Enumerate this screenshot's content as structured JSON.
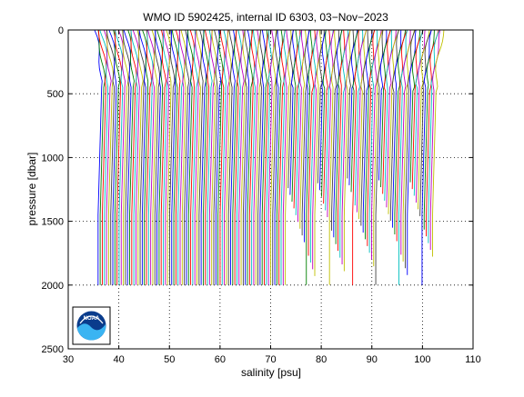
{
  "chart_data": {
    "type": "line",
    "title": "WMO ID 5902425, internal ID 6303, 03−Nov−2023",
    "xlabel": "salinity [psu]",
    "ylabel": "pressure [dbar]",
    "xlim": [
      30,
      110
    ],
    "ylim": [
      2500,
      0
    ],
    "y_reversed": true,
    "x_ticks": [
      "30",
      "40",
      "50",
      "60",
      "70",
      "80",
      "90",
      "100",
      "110"
    ],
    "y_ticks": [
      "0",
      "500",
      "1000",
      "1500",
      "2000",
      "2500"
    ],
    "grid": "dotted",
    "legend": "none",
    "logo": "NOAA",
    "series_colors": [
      "#0000ff",
      "#008000",
      "#ff0000",
      "#00bfbf",
      "#bf00bf",
      "#bfbf00",
      "#404040"
    ],
    "series_summary": {
      "profile_count": 160,
      "surface_salinity_start": 35.2,
      "surface_salinity_end": 104.2,
      "deep_salinity_start": 35.9,
      "deep_salinity_end": 102.0,
      "shallow_group": [
        {
          "s_start": 73.5,
          "s_end": 102.0,
          "pmax_min": 1100,
          "pmax_max": 1950
        }
      ],
      "max_pressure": 2000
    }
  }
}
